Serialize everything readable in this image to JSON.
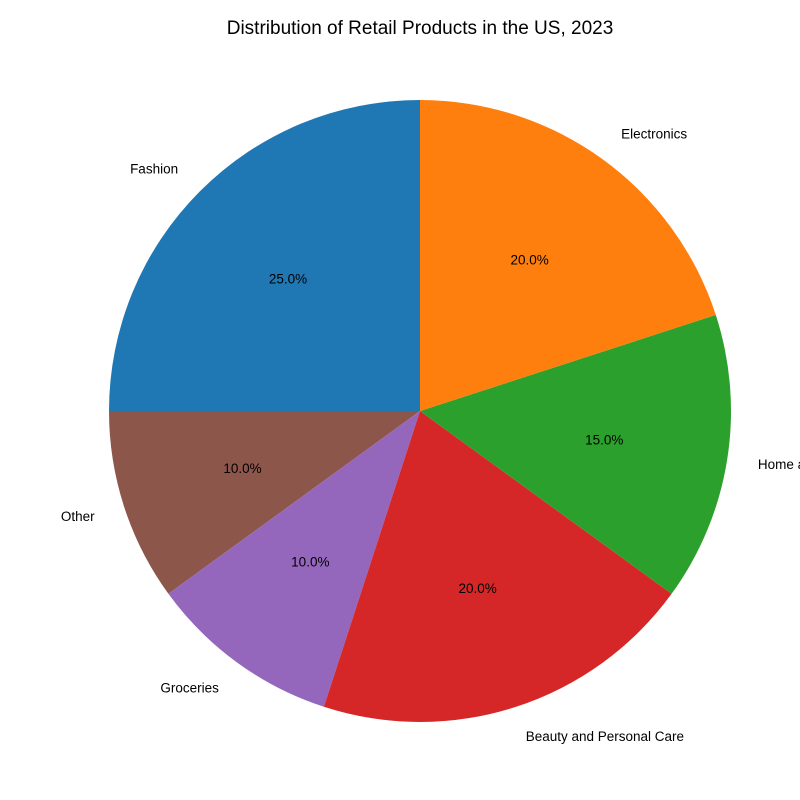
{
  "chart_data": {
    "type": "pie",
    "title": "Distribution of Retail Products in the US, 2023",
    "start_angle_deg": 90,
    "direction": "counterclockwise",
    "slices": [
      {
        "label": "Fashion",
        "value": 25,
        "pct_label": "25.0%",
        "color": "#1f77b4"
      },
      {
        "label": "Other",
        "value": 10,
        "pct_label": "10.0%",
        "color": "#8c564b"
      },
      {
        "label": "Groceries",
        "value": 10,
        "pct_label": "10.0%",
        "color": "#9467bd"
      },
      {
        "label": "Beauty and Personal Care",
        "value": 20,
        "pct_label": "20.0%",
        "color": "#d62728"
      },
      {
        "label": "Home and Kitchen",
        "value": 15,
        "pct_label": "15.0%",
        "color": "#2ca02c"
      },
      {
        "label": "Electronics",
        "value": 20,
        "pct_label": "20.0%",
        "color": "#ff7f0e"
      }
    ]
  }
}
